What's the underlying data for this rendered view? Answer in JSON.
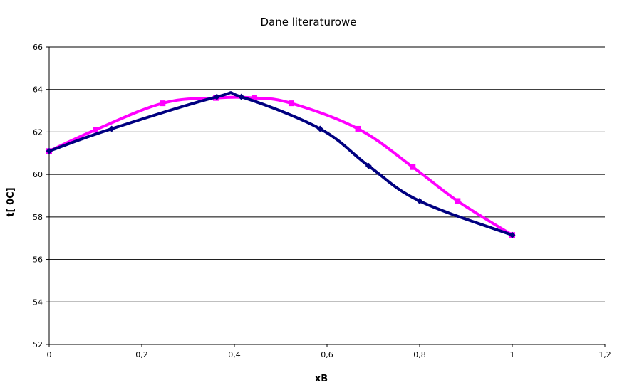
{
  "chart_data": {
    "type": "line",
    "title": "Dane literaturowe",
    "xlabel": "xB",
    "ylabel": "t[ 0C]",
    "xlim": [
      0,
      1.2
    ],
    "ylim": [
      52,
      66
    ],
    "x_ticks": [
      "0",
      "0,2",
      "0,4",
      "0,6",
      "0,8",
      "1",
      "1,2"
    ],
    "y_ticks": [
      "52",
      "54",
      "56",
      "58",
      "60",
      "62",
      "64",
      "66"
    ],
    "grid": "horizontal",
    "legend": "none",
    "series": [
      {
        "color": "#ff00ff",
        "marker": "square",
        "x": [
          0,
          0.1,
          0.245,
          0.36,
          0.443,
          0.523,
          0.667,
          0.785,
          0.882,
          1.0
        ],
        "y": [
          61.1,
          62.1,
          63.35,
          63.6,
          63.6,
          63.35,
          62.15,
          60.35,
          58.75,
          57.15
        ]
      },
      {
        "color": "#000080",
        "marker": "diamond",
        "x": [
          0,
          0.135,
          0.362,
          0.415,
          0.585,
          0.69,
          0.8,
          1.0
        ],
        "y": [
          61.1,
          62.15,
          63.65,
          63.65,
          62.15,
          60.4,
          58.75,
          57.15
        ]
      }
    ]
  }
}
